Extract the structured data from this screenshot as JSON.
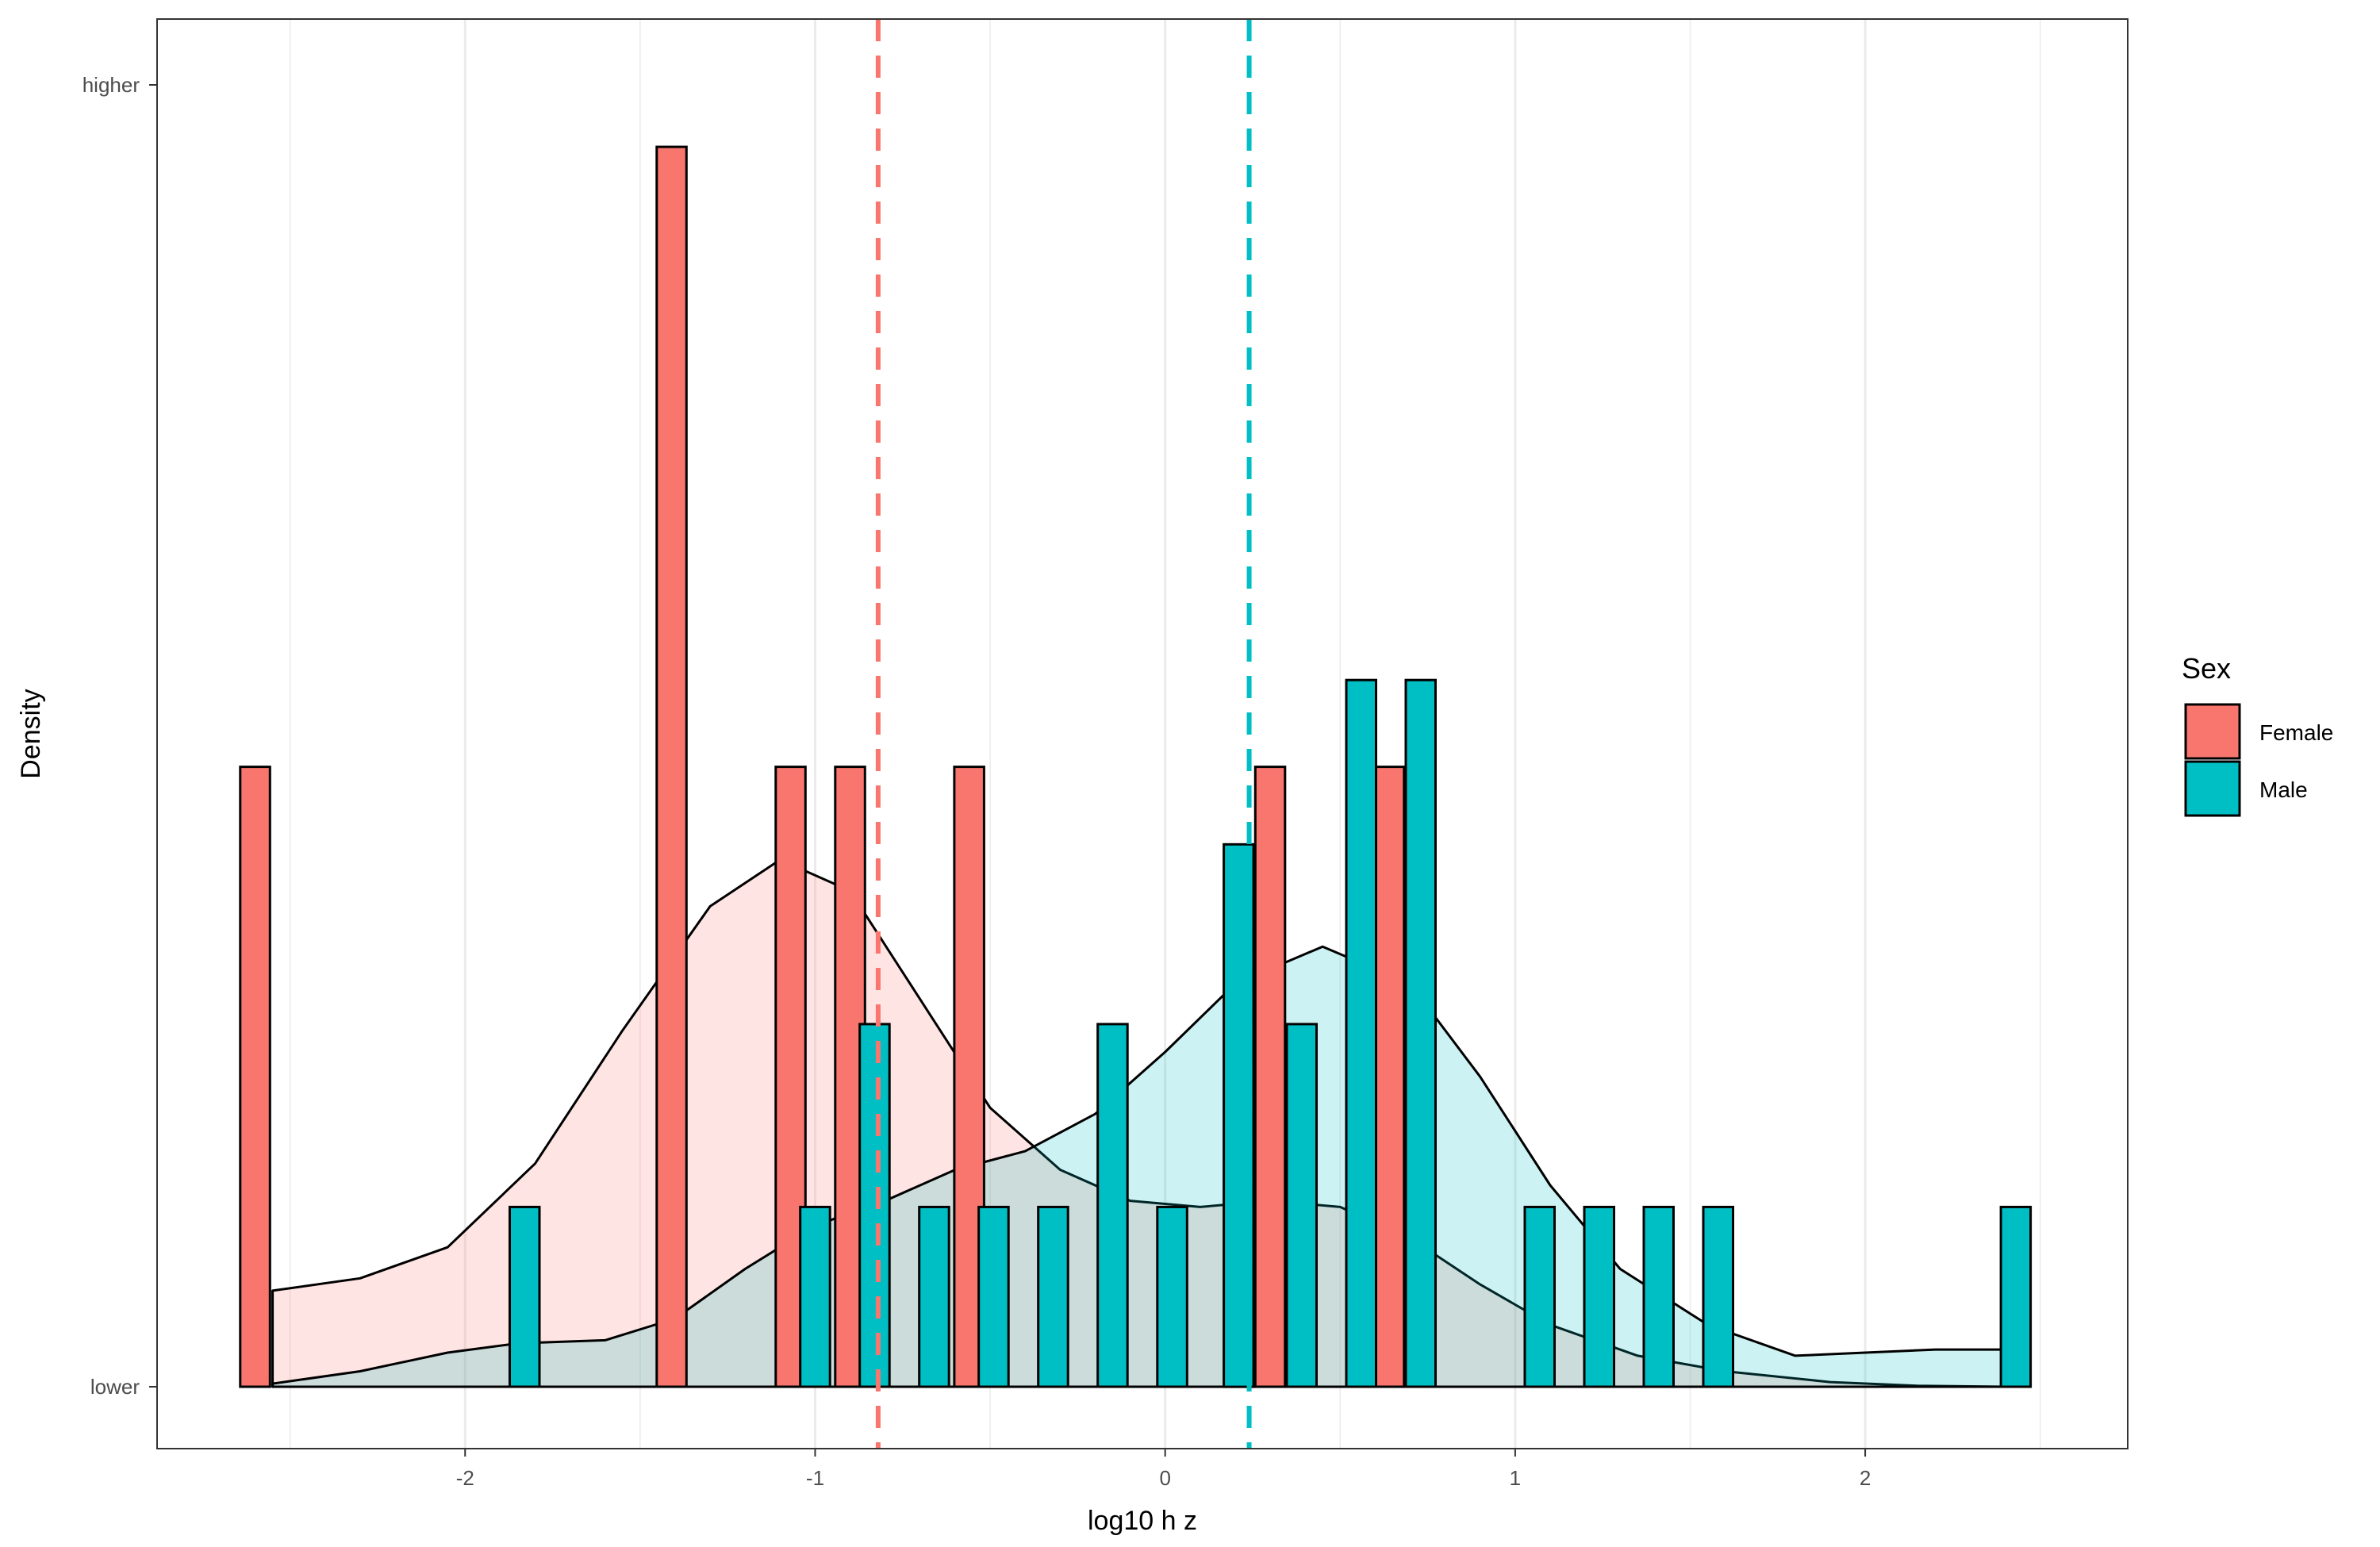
{
  "chart_data": {
    "type": "bar",
    "xlabel": "log10 h z",
    "ylabel": "Density",
    "xlim": [
      -2.88,
      2.75
    ],
    "x_ticks": [
      -2,
      -1,
      0,
      1,
      2
    ],
    "x_tick_labels": [
      "-2",
      "-1",
      "0",
      "1",
      "2"
    ],
    "y_tick_labels": [
      "higher",
      "lower"
    ],
    "ylim": [
      0,
      4.2
    ],
    "grid": "vertical",
    "legend": {
      "title": "Sex",
      "position": "right"
    },
    "bin_width": 0.085,
    "series": [
      {
        "name": "Female",
        "color": "#F8766D",
        "fill_opacity": 0.2,
        "mean": -0.82,
        "bins": [
          {
            "center": -2.6,
            "count": 2
          },
          {
            "center": -1.41,
            "count": 4
          },
          {
            "center": -1.07,
            "count": 2
          },
          {
            "center": -0.9,
            "count": 2
          },
          {
            "center": -0.56,
            "count": 2
          },
          {
            "center": 0.3,
            "count": 2
          },
          {
            "center": 0.64,
            "count": 2
          }
        ],
        "density": [
          [
            -2.55,
            0.31
          ],
          [
            -2.3,
            0.35
          ],
          [
            -2.05,
            0.45
          ],
          [
            -1.8,
            0.72
          ],
          [
            -1.55,
            1.15
          ],
          [
            -1.3,
            1.55
          ],
          [
            -1.1,
            1.7
          ],
          [
            -0.9,
            1.6
          ],
          [
            -0.7,
            1.25
          ],
          [
            -0.5,
            0.9
          ],
          [
            -0.3,
            0.7
          ],
          [
            -0.1,
            0.6
          ],
          [
            0.1,
            0.58
          ],
          [
            0.3,
            0.6
          ],
          [
            0.5,
            0.58
          ],
          [
            0.7,
            0.48
          ],
          [
            0.9,
            0.33
          ],
          [
            1.1,
            0.2
          ],
          [
            1.35,
            0.1
          ],
          [
            1.6,
            0.05
          ],
          [
            1.9,
            0.015
          ],
          [
            2.15,
            0.003
          ],
          [
            2.4,
            0.0
          ]
        ]
      },
      {
        "name": "Male",
        "color": "#00BFC4",
        "fill_opacity": 0.2,
        "mean": 0.24,
        "bins": [
          {
            "center": -1.83,
            "count": 0.58
          },
          {
            "center": -1.0,
            "count": 0.58
          },
          {
            "center": -0.83,
            "count": 1.17
          },
          {
            "center": -0.66,
            "count": 0.58
          },
          {
            "center": -0.49,
            "count": 0.58
          },
          {
            "center": -0.32,
            "count": 0.58
          },
          {
            "center": -0.15,
            "count": 1.17
          },
          {
            "center": 0.02,
            "count": 0.58
          },
          {
            "center": 0.21,
            "count": 1.75
          },
          {
            "center": 0.39,
            "count": 1.17
          },
          {
            "center": 0.56,
            "count": 2.28
          },
          {
            "center": 0.73,
            "count": 2.28
          },
          {
            "center": 1.07,
            "count": 0.58
          },
          {
            "center": 1.24,
            "count": 0.58
          },
          {
            "center": 1.41,
            "count": 0.58
          },
          {
            "center": 1.58,
            "count": 0.58
          },
          {
            "center": 2.43,
            "count": 0.58
          }
        ],
        "density": [
          [
            -2.55,
            0.01
          ],
          [
            -2.3,
            0.05
          ],
          [
            -2.05,
            0.11
          ],
          [
            -1.85,
            0.14
          ],
          [
            -1.6,
            0.15
          ],
          [
            -1.4,
            0.22
          ],
          [
            -1.2,
            0.38
          ],
          [
            -1.0,
            0.52
          ],
          [
            -0.8,
            0.6
          ],
          [
            -0.6,
            0.7
          ],
          [
            -0.4,
            0.76
          ],
          [
            -0.2,
            0.88
          ],
          [
            0.0,
            1.08
          ],
          [
            0.2,
            1.3
          ],
          [
            0.45,
            1.42
          ],
          [
            0.7,
            1.3
          ],
          [
            0.9,
            1.0
          ],
          [
            1.1,
            0.65
          ],
          [
            1.3,
            0.38
          ],
          [
            1.55,
            0.2
          ],
          [
            1.8,
            0.1
          ],
          [
            2.0,
            0.11
          ],
          [
            2.2,
            0.12
          ],
          [
            2.4,
            0.12
          ]
        ]
      }
    ]
  }
}
